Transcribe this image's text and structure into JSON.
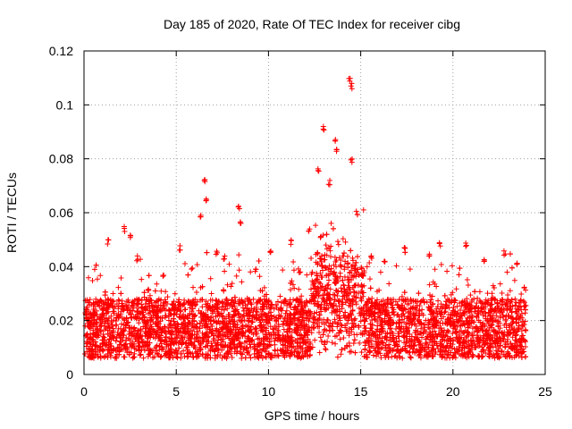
{
  "chart_data": {
    "type": "scatter",
    "title": "Day 185 of 2020, Rate Of TEC Index for receiver cibg",
    "xlabel": "GPS time / hours",
    "ylabel": "ROTI / TECUs",
    "xlim": [
      0,
      25
    ],
    "ylim": [
      0,
      0.12
    ],
    "xticks": [
      0,
      5,
      10,
      15,
      20,
      25
    ],
    "yticks": [
      0,
      0.02,
      0.04,
      0.06,
      0.08,
      0.1,
      0.12
    ],
    "ytick_labels": [
      "0",
      "0.02",
      "0.04",
      "0.06",
      "0.08",
      "0.1",
      "0.12"
    ],
    "grid": true,
    "marker": "+",
    "marker_color": "#ff0000",
    "series": [
      {
        "name": "ROTI",
        "points": [
          [
            0.3,
            0.02
          ],
          [
            0.9,
            0.018
          ],
          [
            1.3,
            0.05
          ],
          [
            1.6,
            0.024
          ],
          [
            2.2,
            0.055
          ],
          [
            2.5,
            0.052
          ],
          [
            2.9,
            0.044
          ],
          [
            3.5,
            0.032
          ],
          [
            4.3,
            0.038
          ],
          [
            5.2,
            0.048
          ],
          [
            5.9,
            0.028
          ],
          [
            6.3,
            0.06
          ],
          [
            6.55,
            0.073
          ],
          [
            6.6,
            0.066
          ],
          [
            7.2,
            0.046
          ],
          [
            7.6,
            0.044
          ],
          [
            8.4,
            0.063
          ],
          [
            8.5,
            0.058
          ],
          [
            9.3,
            0.04
          ],
          [
            10.1,
            0.046
          ],
          [
            11.2,
            0.05
          ],
          [
            11.7,
            0.038
          ],
          [
            12.2,
            0.054
          ],
          [
            12.7,
            0.077
          ],
          [
            13.0,
            0.092
          ],
          [
            13.3,
            0.072
          ],
          [
            13.6,
            0.088
          ],
          [
            13.7,
            0.084
          ],
          [
            14.4,
            0.11
          ],
          [
            14.5,
            0.108
          ],
          [
            14.5,
            0.08
          ],
          [
            14.8,
            0.061
          ],
          [
            15.6,
            0.045
          ],
          [
            16.3,
            0.042
          ],
          [
            17.4,
            0.048
          ],
          [
            18.7,
            0.045
          ],
          [
            19.3,
            0.049
          ],
          [
            20.7,
            0.049
          ],
          [
            21.7,
            0.043
          ],
          [
            22.8,
            0.046
          ],
          [
            23.5,
            0.042
          ],
          [
            23.9,
            0.033
          ]
        ]
      }
    ]
  }
}
